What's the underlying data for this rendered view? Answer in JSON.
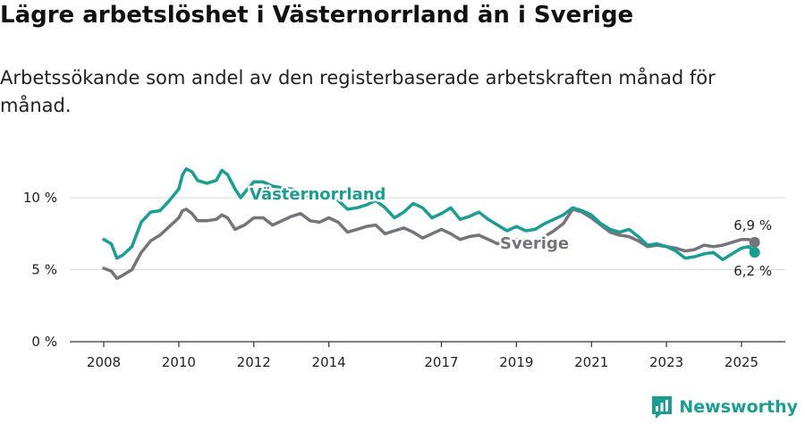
{
  "title": "Lägre arbetslöshet i Västernorrland än i Sverige",
  "subtitle": "Arbetssökande som andel av den registerbaserade arbetskraften månad för månad.",
  "brand": "Newsworthy",
  "colors": {
    "vasternorrland": "#1a9e93",
    "sverige": "#76747a",
    "grid": "#d9d9d9",
    "axis": "#333333"
  },
  "chart_data": {
    "type": "line",
    "ylim": [
      0,
      12
    ],
    "xlim": [
      2007.5,
      2026.0
    ],
    "y_ticks": [
      0,
      5,
      10
    ],
    "y_tick_labels": [
      "0 %",
      "5 %",
      "10 %"
    ],
    "x_ticks": [
      2008,
      2010,
      2012,
      2014,
      2017,
      2019,
      2021,
      2023,
      2025
    ],
    "x_tick_labels": [
      "2008",
      "2010",
      "2012",
      "2014",
      "2017",
      "2019",
      "2021",
      "2023",
      "2025"
    ],
    "series": [
      {
        "name": "Västernorrland",
        "end_label": "6,2 %",
        "points": [
          [
            2008.0,
            7.1
          ],
          [
            2008.2,
            6.8
          ],
          [
            2008.35,
            5.8
          ],
          [
            2008.5,
            6.0
          ],
          [
            2008.75,
            6.6
          ],
          [
            2009.0,
            8.3
          ],
          [
            2009.25,
            9.0
          ],
          [
            2009.5,
            9.1
          ],
          [
            2009.75,
            9.8
          ],
          [
            2010.0,
            10.6
          ],
          [
            2010.1,
            11.6
          ],
          [
            2010.2,
            12.0
          ],
          [
            2010.35,
            11.8
          ],
          [
            2010.5,
            11.2
          ],
          [
            2010.75,
            11.0
          ],
          [
            2011.0,
            11.2
          ],
          [
            2011.15,
            11.9
          ],
          [
            2011.3,
            11.6
          ],
          [
            2011.5,
            10.6
          ],
          [
            2011.65,
            10.0
          ],
          [
            2011.8,
            10.5
          ],
          [
            2012.0,
            11.1
          ],
          [
            2012.25,
            11.1
          ],
          [
            2012.5,
            10.8
          ],
          [
            2012.75,
            10.7
          ],
          [
            2013.0,
            10.6
          ],
          [
            2013.25,
            10.4
          ],
          [
            2013.5,
            10.0
          ],
          [
            2013.75,
            10.2
          ],
          [
            2014.0,
            10.1
          ],
          [
            2014.25,
            9.8
          ],
          [
            2014.5,
            9.2
          ],
          [
            2014.75,
            9.3
          ],
          [
            2015.0,
            9.5
          ],
          [
            2015.25,
            9.8
          ],
          [
            2015.5,
            9.3
          ],
          [
            2015.75,
            8.6
          ],
          [
            2016.0,
            9.0
          ],
          [
            2016.25,
            9.6
          ],
          [
            2016.5,
            9.3
          ],
          [
            2016.75,
            8.6
          ],
          [
            2017.0,
            8.9
          ],
          [
            2017.25,
            9.3
          ],
          [
            2017.5,
            8.5
          ],
          [
            2017.75,
            8.7
          ],
          [
            2018.0,
            9.0
          ],
          [
            2018.25,
            8.5
          ],
          [
            2018.5,
            8.1
          ],
          [
            2018.75,
            7.7
          ],
          [
            2019.0,
            8.0
          ],
          [
            2019.25,
            7.7
          ],
          [
            2019.5,
            7.8
          ],
          [
            2019.75,
            8.2
          ],
          [
            2020.0,
            8.5
          ],
          [
            2020.25,
            8.8
          ],
          [
            2020.5,
            9.3
          ],
          [
            2020.75,
            9.1
          ],
          [
            2021.0,
            8.8
          ],
          [
            2021.25,
            8.2
          ],
          [
            2021.5,
            7.8
          ],
          [
            2021.75,
            7.6
          ],
          [
            2022.0,
            7.8
          ],
          [
            2022.25,
            7.3
          ],
          [
            2022.5,
            6.7
          ],
          [
            2022.75,
            6.8
          ],
          [
            2023.0,
            6.6
          ],
          [
            2023.25,
            6.3
          ],
          [
            2023.5,
            5.8
          ],
          [
            2023.75,
            5.9
          ],
          [
            2024.0,
            6.1
          ],
          [
            2024.25,
            6.2
          ],
          [
            2024.5,
            5.7
          ],
          [
            2024.75,
            6.1
          ],
          [
            2025.0,
            6.5
          ],
          [
            2025.2,
            6.6
          ],
          [
            2025.35,
            6.2
          ]
        ]
      },
      {
        "name": "Sverige",
        "end_label": "6,9 %",
        "points": [
          [
            2008.0,
            5.1
          ],
          [
            2008.2,
            4.9
          ],
          [
            2008.35,
            4.4
          ],
          [
            2008.5,
            4.6
          ],
          [
            2008.75,
            5.0
          ],
          [
            2009.0,
            6.2
          ],
          [
            2009.25,
            7.0
          ],
          [
            2009.5,
            7.4
          ],
          [
            2009.75,
            8.0
          ],
          [
            2010.0,
            8.6
          ],
          [
            2010.1,
            9.1
          ],
          [
            2010.2,
            9.2
          ],
          [
            2010.35,
            8.9
          ],
          [
            2010.5,
            8.4
          ],
          [
            2010.75,
            8.4
          ],
          [
            2011.0,
            8.5
          ],
          [
            2011.15,
            8.8
          ],
          [
            2011.3,
            8.6
          ],
          [
            2011.5,
            7.8
          ],
          [
            2011.75,
            8.1
          ],
          [
            2012.0,
            8.6
          ],
          [
            2012.25,
            8.6
          ],
          [
            2012.5,
            8.1
          ],
          [
            2012.75,
            8.4
          ],
          [
            2013.0,
            8.7
          ],
          [
            2013.25,
            8.9
          ],
          [
            2013.5,
            8.4
          ],
          [
            2013.75,
            8.3
          ],
          [
            2014.0,
            8.6
          ],
          [
            2014.25,
            8.3
          ],
          [
            2014.5,
            7.6
          ],
          [
            2014.75,
            7.8
          ],
          [
            2015.0,
            8.0
          ],
          [
            2015.25,
            8.1
          ],
          [
            2015.5,
            7.5
          ],
          [
            2015.75,
            7.7
          ],
          [
            2016.0,
            7.9
          ],
          [
            2016.25,
            7.6
          ],
          [
            2016.5,
            7.2
          ],
          [
            2016.75,
            7.5
          ],
          [
            2017.0,
            7.8
          ],
          [
            2017.25,
            7.5
          ],
          [
            2017.5,
            7.1
          ],
          [
            2017.75,
            7.3
          ],
          [
            2018.0,
            7.4
          ],
          [
            2018.25,
            7.1
          ],
          [
            2018.5,
            6.8
          ],
          [
            2018.75,
            7.0
          ],
          [
            2019.0,
            7.1
          ],
          [
            2019.25,
            7.1
          ],
          [
            2019.5,
            6.9
          ],
          [
            2019.75,
            7.3
          ],
          [
            2020.0,
            7.7
          ],
          [
            2020.25,
            8.2
          ],
          [
            2020.5,
            9.2
          ],
          [
            2020.75,
            9.0
          ],
          [
            2021.0,
            8.6
          ],
          [
            2021.25,
            8.1
          ],
          [
            2021.5,
            7.6
          ],
          [
            2021.75,
            7.4
          ],
          [
            2022.0,
            7.3
          ],
          [
            2022.25,
            7.0
          ],
          [
            2022.5,
            6.6
          ],
          [
            2022.75,
            6.7
          ],
          [
            2023.0,
            6.6
          ],
          [
            2023.25,
            6.5
          ],
          [
            2023.5,
            6.3
          ],
          [
            2023.75,
            6.4
          ],
          [
            2024.0,
            6.7
          ],
          [
            2024.25,
            6.6
          ],
          [
            2024.5,
            6.7
          ],
          [
            2024.75,
            6.9
          ],
          [
            2025.0,
            7.1
          ],
          [
            2025.2,
            7.1
          ],
          [
            2025.35,
            6.9
          ]
        ]
      }
    ]
  }
}
